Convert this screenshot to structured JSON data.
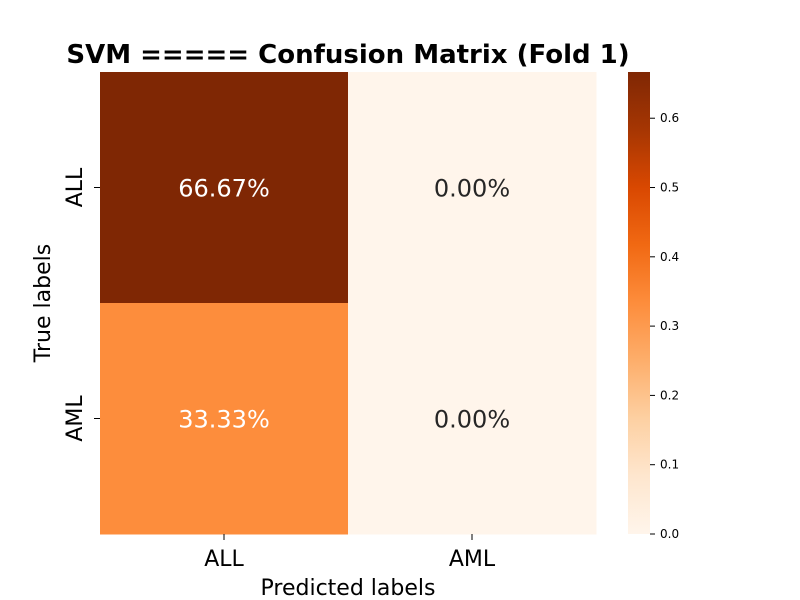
{
  "chart_data": {
    "type": "heatmap",
    "title": "SVM ===== Confusion Matrix (Fold 1)",
    "xlabel": "Predicted labels",
    "ylabel": "True labels",
    "x_categories": [
      "ALL",
      "AML"
    ],
    "y_categories": [
      "ALL",
      "AML"
    ],
    "values": [
      [
        0.6667,
        0.0
      ],
      [
        0.3333,
        0.0
      ]
    ],
    "cell_labels": [
      [
        "66.67%",
        "0.00%"
      ],
      [
        "33.33%",
        "0.00%"
      ]
    ],
    "colormap": "Oranges",
    "colorbar": {
      "range": [
        0,
        0.6667
      ],
      "ticks": [
        0.0,
        0.1,
        0.2,
        0.3,
        0.4,
        0.5,
        0.6
      ],
      "tick_labels": [
        "0.0",
        "0.1",
        "0.2",
        "0.3",
        "0.4",
        "0.5",
        "0.6"
      ]
    },
    "colors": {
      "max": "#7f2704",
      "min": "#fff5eb",
      "text_dark": "#262626",
      "text_light": "#ffffff"
    }
  }
}
